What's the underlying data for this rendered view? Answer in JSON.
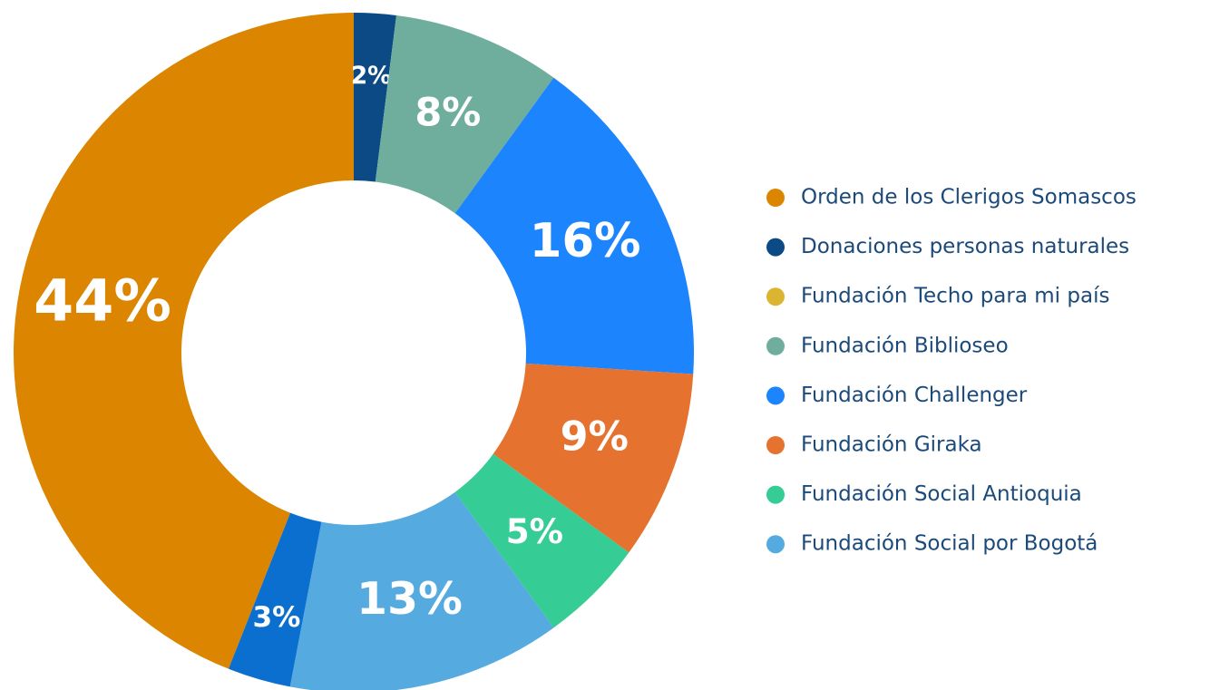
{
  "chart_data": {
    "type": "donut",
    "categories": [
      "Orden de los Clerigos Somascos",
      "Donaciones personas naturales",
      "Fundación Techo para mi país",
      "Fundación Biblioseo",
      "Fundación Challenger",
      "Fundación Giraka",
      "Fundación Social Antioquia",
      "Fundación Social por Bogotá",
      null
    ],
    "values": [
      44,
      2,
      0,
      8,
      16,
      9,
      5,
      13,
      3
    ],
    "value_labels": [
      "44%",
      "2%",
      null,
      "8%",
      "16%",
      "9%",
      "5%",
      "13%",
      "3%"
    ],
    "colors": [
      "#db8500",
      "#0b4a85",
      "#dbb530",
      "#6fae9c",
      "#1c84fd",
      "#e5722f",
      "#35cc96",
      "#55aadf",
      "#0a6fcf"
    ],
    "legend": "right"
  }
}
